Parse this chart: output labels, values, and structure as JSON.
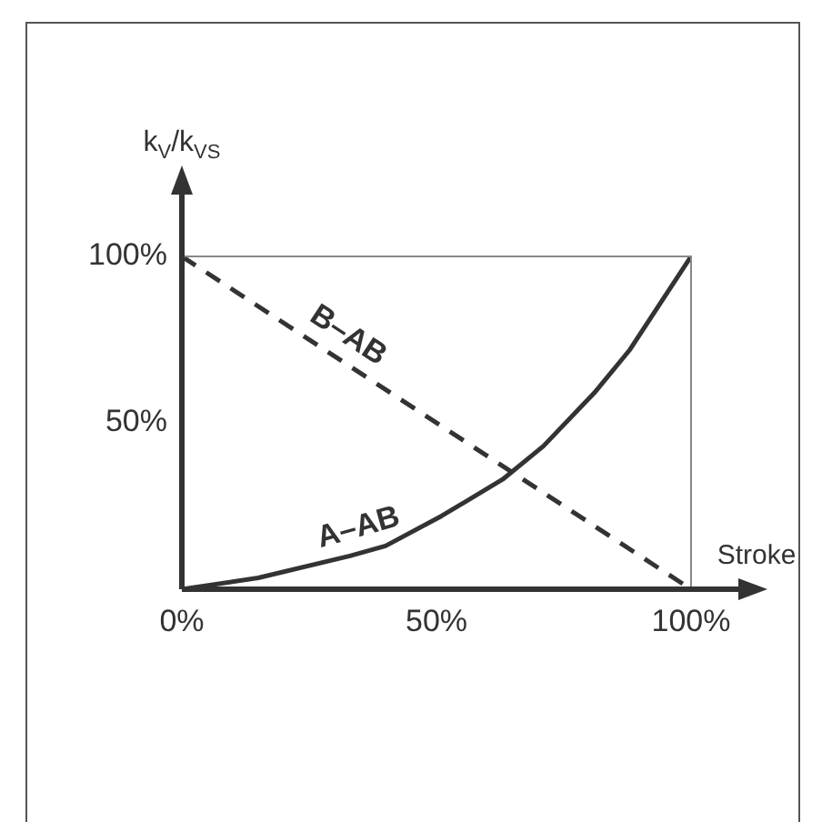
{
  "chart_data": {
    "type": "line",
    "xlabel": "Stroke",
    "ylabel": "k$_{V}$/k$_{VS}$",
    "xlim": [
      0,
      100
    ],
    "ylim": [
      0,
      100
    ],
    "xticks": [
      {
        "value": 0,
        "label": "0%"
      },
      {
        "value": 50,
        "label": "50%"
      },
      {
        "value": 100,
        "label": "100%"
      }
    ],
    "yticks": [
      {
        "value": 0,
        "label": null
      },
      {
        "value": 50,
        "label": "50%"
      },
      {
        "value": 100,
        "label": "100%"
      }
    ],
    "series": [
      {
        "name": "A–AB",
        "color": "#333333",
        "line_style": "solid",
        "x": [
          0,
          15,
          33,
          40,
          51,
          63,
          71,
          81,
          88,
          100
        ],
        "values": [
          0,
          3.4,
          10,
          13,
          22,
          33,
          43,
          59,
          72,
          100
        ]
      },
      {
        "name": "B–AB",
        "color": "#333333",
        "line_style": "dashed",
        "x": [
          0,
          100
        ],
        "values": [
          100,
          0
        ]
      }
    ],
    "marker": "none",
    "grid": false,
    "legend": false
  }
}
